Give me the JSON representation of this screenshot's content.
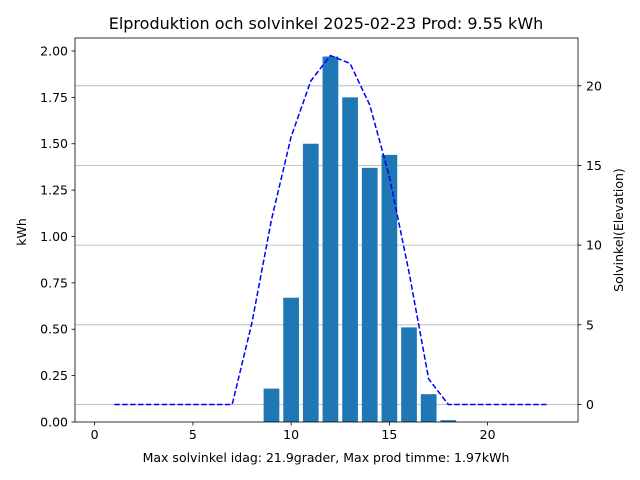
{
  "chart_data": {
    "type": "bar",
    "title": "Elproduktion och solvinkel 2025-02-23 Prod: 9.55 kWh",
    "xlabel": "Max solvinkel idag: 21.9grader, Max prod timme: 1.97kWh",
    "ylabel": "kWh",
    "ylabel_right": "Solvinkel(Elevation)",
    "xlim": [
      -1,
      24.6
    ],
    "ylim": [
      0,
      2.07
    ],
    "ylim_right": [
      -1.1,
      23.0
    ],
    "xticks": [
      0,
      5,
      10,
      15,
      20
    ],
    "yticks": [
      0.0,
      0.25,
      0.5,
      0.75,
      1.0,
      1.25,
      1.5,
      1.75,
      2.0
    ],
    "ytick_labels": [
      "0.00",
      "0.25",
      "0.50",
      "0.75",
      "1.00",
      "1.25",
      "1.50",
      "1.75",
      "2.00"
    ],
    "yticks_right": [
      0,
      5,
      10,
      15,
      20
    ],
    "grid": "horizontal lines at right-axis ticks",
    "bar_color": "#1f77b4",
    "line_color": "#0000ff",
    "right_label_color": "#0000ff",
    "series": [
      {
        "kind": "bar",
        "axis": "left",
        "x": [
          9,
          10,
          11,
          12,
          13,
          14,
          15,
          16,
          17,
          18
        ],
        "values": [
          0.18,
          0.67,
          1.5,
          1.97,
          1.75,
          1.37,
          1.44,
          0.51,
          0.15,
          0.01
        ]
      },
      {
        "kind": "line",
        "style": "dashed",
        "axis": "right",
        "x": [
          1,
          2,
          3,
          4,
          5,
          6,
          7,
          8,
          9,
          10,
          11,
          12,
          13,
          14,
          15,
          16,
          17,
          18,
          19,
          20,
          21,
          22,
          23
        ],
        "values": [
          0,
          0,
          0,
          0,
          0,
          0,
          0,
          5.1,
          11.6,
          16.8,
          20.3,
          21.9,
          21.4,
          18.8,
          14.3,
          8.3,
          1.6,
          0,
          0,
          0,
          0,
          0,
          0
        ]
      }
    ]
  }
}
